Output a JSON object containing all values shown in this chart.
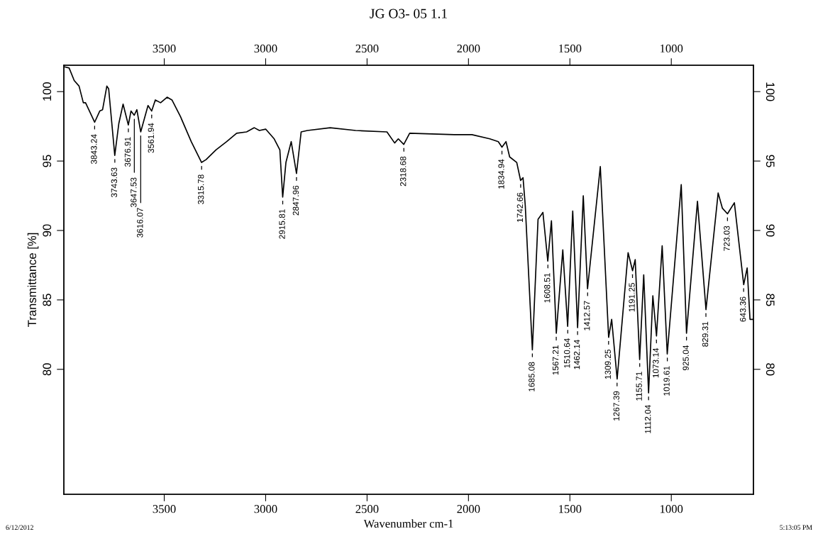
{
  "chart_data": {
    "type": "line",
    "title": "JG O3- 05 1.1",
    "xlabel": "Wavenumber cm-1",
    "ylabel": "Transmittance [%]",
    "xlim": [
      3995,
      595
    ],
    "xticks": [
      3500,
      3000,
      2500,
      2000,
      1500,
      1000
    ],
    "x2lim": [
      3995,
      595
    ],
    "x2ticks": [
      3500,
      3000,
      2500,
      2000,
      1500,
      1000
    ],
    "ylim": [
      71,
      101.9
    ],
    "yticks": [
      80,
      85,
      90,
      95,
      100
    ],
    "y2lim": [
      71,
      101.9
    ],
    "y2ticks": [
      80,
      85,
      90,
      95,
      100
    ],
    "grid": false,
    "marker": "none",
    "line_style": "solid",
    "series": [
      {
        "color": "#000000",
        "x": [
          3995,
          3969,
          3944,
          3920,
          3899,
          3888,
          3843,
          3818,
          3804,
          3783,
          3774,
          3744,
          3724,
          3703,
          3677,
          3664,
          3648,
          3635,
          3616,
          3580,
          3562,
          3544,
          3518,
          3486,
          3462,
          3420,
          3367,
          3316,
          3294,
          3245,
          3192,
          3143,
          3094,
          3056,
          3031,
          3000,
          2958,
          2930,
          2916,
          2900,
          2874,
          2848,
          2825,
          2794,
          2682,
          2556,
          2402,
          2364,
          2346,
          2319,
          2290,
          2070,
          1983,
          1895,
          1853,
          1835,
          1815,
          1797,
          1762,
          1743,
          1731,
          1720,
          1685,
          1657,
          1633,
          1609,
          1591,
          1567,
          1535,
          1511,
          1486,
          1462,
          1434,
          1413,
          1350,
          1309,
          1294,
          1267,
          1213,
          1191,
          1178,
          1156,
          1136,
          1112,
          1091,
          1073,
          1045,
          1020,
          951,
          925,
          871,
          829,
          769,
          748,
          723,
          689,
          643,
          626,
          612,
          598
        ],
        "values": [
          101.8,
          101.7,
          100.8,
          100.4,
          99.2,
          99.2,
          97.8,
          98.6,
          98.7,
          100.4,
          100.2,
          95.4,
          97.7,
          99.1,
          97.6,
          98.6,
          98.3,
          98.7,
          97.1,
          99.0,
          98.6,
          99.4,
          99.2,
          99.6,
          99.4,
          98.2,
          96.4,
          94.9,
          95.1,
          95.8,
          96.4,
          97.0,
          97.1,
          97.4,
          97.2,
          97.3,
          96.6,
          95.8,
          92.4,
          94.9,
          96.4,
          94.1,
          97.1,
          97.2,
          97.4,
          97.2,
          97.1,
          96.3,
          96.6,
          96.2,
          97.0,
          96.9,
          96.9,
          96.6,
          96.4,
          96.0,
          96.4,
          95.3,
          94.9,
          93.6,
          93.8,
          91.8,
          81.4,
          90.8,
          91.3,
          87.8,
          90.7,
          82.6,
          88.6,
          83.1,
          91.4,
          83.0,
          92.5,
          85.8,
          94.6,
          82.3,
          83.6,
          79.3,
          88.4,
          87.1,
          87.9,
          80.7,
          86.8,
          78.3,
          85.3,
          82.4,
          88.9,
          81.1,
          93.3,
          82.6,
          92.1,
          84.3,
          92.7,
          91.6,
          91.2,
          92.0,
          86.1,
          87.3,
          83.6,
          83.6
        ]
      }
    ],
    "annotations": [
      {
        "text": "3843.24",
        "x": 3843.24,
        "y": 97.8
      },
      {
        "text": "3743.63",
        "x": 3743.63,
        "y": 95.4
      },
      {
        "text": "3676.91",
        "x": 3676.91,
        "y": 97.6
      },
      {
        "text": "3647.53",
        "x": 3647.53,
        "y": 98.3
      },
      {
        "text": "3616.07",
        "x": 3616.07,
        "y": 97.1
      },
      {
        "text": "3561.94",
        "x": 3561.94,
        "y": 98.6
      },
      {
        "text": "3315.78",
        "x": 3315.78,
        "y": 94.9
      },
      {
        "text": "2915.81",
        "x": 2915.81,
        "y": 92.4
      },
      {
        "text": "2847.96",
        "x": 2847.96,
        "y": 94.1
      },
      {
        "text": "2318.68",
        "x": 2318.68,
        "y": 96.2
      },
      {
        "text": "1834.94",
        "x": 1834.94,
        "y": 96.0
      },
      {
        "text": "1742.66",
        "x": 1742.66,
        "y": 93.6
      },
      {
        "text": "1685.08",
        "x": 1685.08,
        "y": 81.4
      },
      {
        "text": "1608.51",
        "x": 1608.51,
        "y": 87.8
      },
      {
        "text": "1567.21",
        "x": 1567.21,
        "y": 82.6
      },
      {
        "text": "1510.64",
        "x": 1510.64,
        "y": 83.1
      },
      {
        "text": "1462.14",
        "x": 1462.14,
        "y": 83.0
      },
      {
        "text": "1412.57",
        "x": 1412.57,
        "y": 85.8
      },
      {
        "text": "1309.25",
        "x": 1309.25,
        "y": 82.3
      },
      {
        "text": "1267.39",
        "x": 1267.39,
        "y": 79.3
      },
      {
        "text": "1191.25",
        "x": 1191.25,
        "y": 87.1
      },
      {
        "text": "1155.71",
        "x": 1155.71,
        "y": 80.7
      },
      {
        "text": "1112.04",
        "x": 1112.04,
        "y": 78.3
      },
      {
        "text": "1073.14",
        "x": 1073.14,
        "y": 82.4
      },
      {
        "text": "1019.61",
        "x": 1019.61,
        "y": 81.1
      },
      {
        "text": "925.04",
        "x": 925.04,
        "y": 82.6
      },
      {
        "text": "829.31",
        "x": 829.31,
        "y": 84.3
      },
      {
        "text": "723.03",
        "x": 723.03,
        "y": 91.2
      },
      {
        "text": "643.36",
        "x": 643.36,
        "y": 86.1
      },
      "6/12/2012",
      "5:13:05 PM"
    ]
  }
}
